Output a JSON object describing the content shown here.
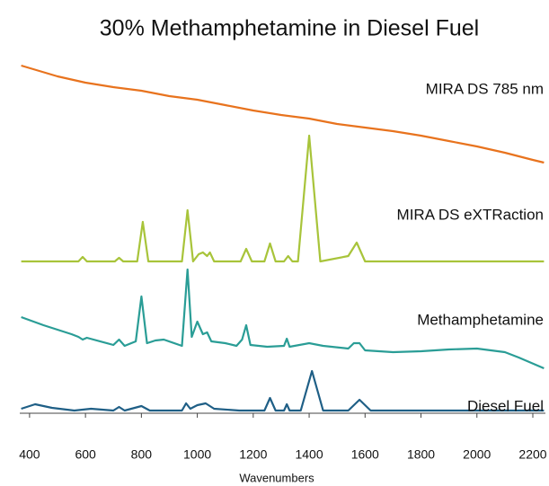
{
  "chart_data": {
    "type": "line",
    "title": "30% Methamphetamine in Diesel Fuel",
    "x_label": "Wavenumbers",
    "xlim": [
      365,
      2245
    ],
    "xticks": [
      400,
      600,
      800,
      1000,
      1200,
      1400,
      1600,
      1800,
      2000,
      2200
    ],
    "series": [
      {
        "name": "MIRA DS 785 nm",
        "color": "#e8731e",
        "x": [
          370,
          500,
          600,
          700,
          800,
          900,
          1000,
          1100,
          1200,
          1300,
          1400,
          1500,
          1600,
          1700,
          1800,
          1900,
          2000,
          2100,
          2200,
          2240
        ],
        "values": [
          112,
          100,
          93,
          88,
          84,
          78,
          74,
          68,
          62,
          57,
          53,
          47,
          43,
          39,
          34,
          28,
          22,
          15,
          7,
          4
        ]
      },
      {
        "name": "MIRA DS eXTRaction",
        "color": "#a8c43a",
        "x": [
          370,
          575,
          590,
          605,
          705,
          720,
          735,
          785,
          805,
          825,
          945,
          965,
          985,
          1005,
          1020,
          1035,
          1045,
          1060,
          1155,
          1175,
          1195,
          1240,
          1260,
          1280,
          1310,
          1325,
          1340,
          1360,
          1400,
          1440,
          1540,
          1570,
          1600,
          2240
        ],
        "values": [
          0,
          0,
          5,
          0,
          0,
          4,
          0,
          0,
          44,
          0,
          0,
          57,
          0,
          8,
          10,
          6,
          10,
          0,
          0,
          14,
          0,
          0,
          20,
          0,
          0,
          6,
          0,
          0,
          140,
          0,
          6,
          21,
          0,
          0
        ]
      },
      {
        "name": "Methamphetamine",
        "color": "#2a9d96",
        "x": [
          370,
          450,
          550,
          575,
          590,
          605,
          700,
          720,
          740,
          780,
          800,
          820,
          850,
          880,
          945,
          965,
          980,
          1000,
          1020,
          1035,
          1050,
          1100,
          1140,
          1160,
          1175,
          1190,
          1250,
          1310,
          1320,
          1330,
          1400,
          1450,
          1540,
          1560,
          1580,
          1600,
          1700,
          1800,
          1900,
          2000,
          2100,
          2150,
          2240
        ],
        "values": [
          57,
          48,
          38,
          35,
          32,
          34,
          26,
          32,
          25,
          30,
          80,
          28,
          31,
          32,
          25,
          110,
          35,
          52,
          38,
          40,
          30,
          28,
          25,
          32,
          48,
          26,
          24,
          25,
          33,
          24,
          28,
          25,
          22,
          28,
          28,
          20,
          18,
          19,
          21,
          22,
          18,
          12,
          0
        ]
      },
      {
        "name": "Diesel Fuel",
        "color": "#1f5f86",
        "x": [
          370,
          420,
          480,
          560,
          620,
          700,
          720,
          740,
          800,
          830,
          900,
          945,
          960,
          975,
          1000,
          1030,
          1060,
          1150,
          1240,
          1260,
          1280,
          1310,
          1320,
          1330,
          1370,
          1410,
          1450,
          1540,
          1580,
          1620,
          2240
        ],
        "values": [
          2,
          7,
          3,
          0,
          2,
          0,
          4,
          0,
          5,
          0,
          0,
          0,
          8,
          2,
          6,
          8,
          2,
          0,
          0,
          14,
          0,
          0,
          7,
          0,
          0,
          44,
          0,
          0,
          12,
          0,
          0
        ]
      }
    ]
  }
}
